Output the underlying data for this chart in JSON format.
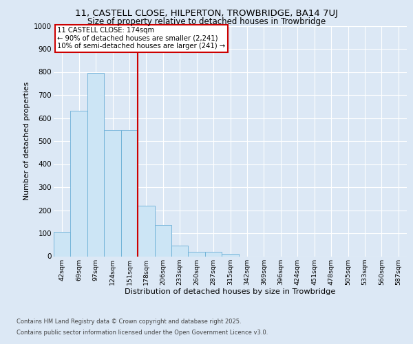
{
  "title_line1": "11, CASTELL CLOSE, HILPERTON, TROWBRIDGE, BA14 7UJ",
  "title_line2": "Size of property relative to detached houses in Trowbridge",
  "xlabel": "Distribution of detached houses by size in Trowbridge",
  "ylabel": "Number of detached properties",
  "categories": [
    "42sqm",
    "69sqm",
    "97sqm",
    "124sqm",
    "151sqm",
    "178sqm",
    "206sqm",
    "233sqm",
    "260sqm",
    "287sqm",
    "315sqm",
    "342sqm",
    "369sqm",
    "396sqm",
    "424sqm",
    "451sqm",
    "478sqm",
    "505sqm",
    "533sqm",
    "560sqm",
    "587sqm"
  ],
  "values": [
    107,
    630,
    795,
    547,
    547,
    220,
    135,
    45,
    18,
    18,
    10,
    0,
    0,
    0,
    0,
    0,
    0,
    0,
    0,
    0,
    0
  ],
  "bar_color": "#cce5f5",
  "bar_edge_color": "#6aafd6",
  "ref_line_label": "11 CASTELL CLOSE: 174sqm",
  "annotation_line1": "← 90% of detached houses are smaller (2,241)",
  "annotation_line2": "10% of semi-detached houses are larger (241) →",
  "annotation_box_color": "#ffffff",
  "annotation_box_edge": "#cc0000",
  "vline_color": "#cc0000",
  "background_color": "#dce8f5",
  "plot_bg_color": "#dce8f5",
  "footer_line1": "Contains HM Land Registry data © Crown copyright and database right 2025.",
  "footer_line2": "Contains public sector information licensed under the Open Government Licence v3.0.",
  "ylim": [
    0,
    1000
  ],
  "yticks": [
    0,
    100,
    200,
    300,
    400,
    500,
    600,
    700,
    800,
    900,
    1000
  ],
  "vline_bin_index": 5
}
